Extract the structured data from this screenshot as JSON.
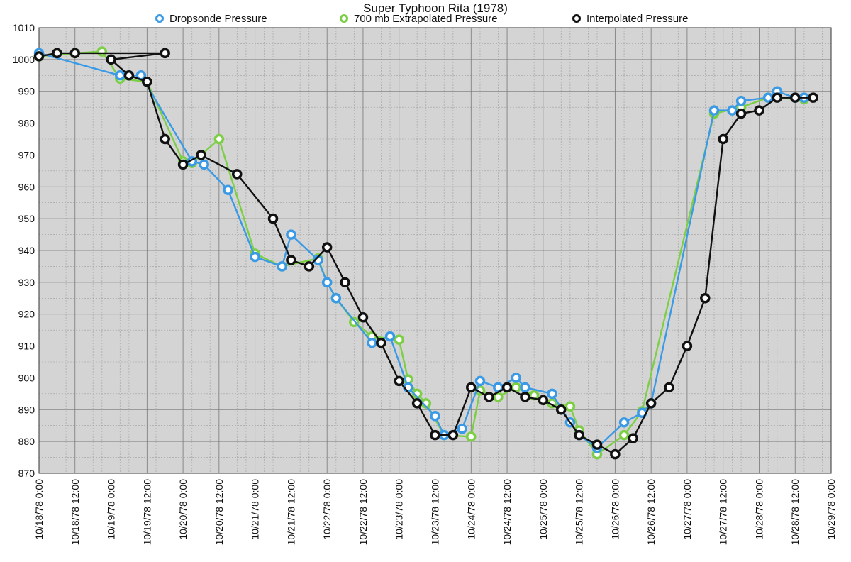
{
  "chart_data": {
    "type": "line",
    "title": "Super Typhoon Rita (1978)",
    "xlabel": "",
    "ylabel": "",
    "x_ticks": [
      "10/18/78 0:00",
      "10/18/78 12:00",
      "10/19/78 0:00",
      "10/19/78 12:00",
      "10/20/78 0:00",
      "10/20/78 12:00",
      "10/21/78 0:00",
      "10/21/78 12:00",
      "10/22/78 0:00",
      "10/22/78 12:00",
      "10/23/78 0:00",
      "10/23/78 12:00",
      "10/24/78 0:00",
      "10/24/78 12:00",
      "10/25/78 0:00",
      "10/25/78 12:00",
      "10/26/78 0:00",
      "10/26/78 12:00",
      "10/27/78 0:00",
      "10/27/78 12:00",
      "10/28/78 0:00",
      "10/28/78 12:00",
      "10/29/78 0:00"
    ],
    "y_ticks": [
      870,
      880,
      890,
      900,
      910,
      920,
      930,
      940,
      950,
      960,
      970,
      980,
      990,
      1000,
      1010
    ],
    "ylim": [
      870,
      1010
    ],
    "xlim": [
      "10/18/78 0:00",
      "10/29/78 0:00"
    ],
    "grid": true,
    "legend_position": "top",
    "series": [
      {
        "name": "Dropsonde Pressure",
        "color": "#3b9ae6",
        "points": [
          [
            "10/18/78 0:00",
            1002
          ],
          [
            "10/19/78 3:00",
            995
          ],
          [
            "10/19/78 10:00",
            995
          ],
          [
            "10/20/78 3:00",
            968
          ],
          [
            "10/20/78 7:00",
            967
          ],
          [
            "10/20/78 15:00",
            959
          ],
          [
            "10/21/78 0:00",
            938
          ],
          [
            "10/21/78 9:00",
            935
          ],
          [
            "10/21/78 12:00",
            945
          ],
          [
            "10/21/78 21:00",
            937
          ],
          [
            "10/22/78 0:00",
            930
          ],
          [
            "10/22/78 3:00",
            925
          ],
          [
            "10/22/78 15:00",
            911
          ],
          [
            "10/22/78 21:00",
            913
          ],
          [
            "10/23/78 3:00",
            897
          ],
          [
            "10/23/78 12:00",
            888
          ],
          [
            "10/23/78 15:00",
            882
          ],
          [
            "10/23/78 21:00",
            884
          ],
          [
            "10/24/78 3:00",
            899
          ],
          [
            "10/24/78 9:00",
            897
          ],
          [
            "10/24/78 15:00",
            900
          ],
          [
            "10/24/78 18:00",
            897
          ],
          [
            "10/25/78 3:00",
            895
          ],
          [
            "10/25/78 9:00",
            886
          ],
          [
            "10/25/78 12:00",
            882
          ],
          [
            "10/25/78 18:00",
            878
          ],
          [
            "10/26/78 3:00",
            886
          ],
          [
            "10/26/78 9:00",
            889
          ],
          [
            "10/26/78 12:00",
            892
          ],
          [
            "10/27/78 9:00",
            984
          ],
          [
            "10/27/78 15:00",
            984
          ],
          [
            "10/27/78 18:00",
            987
          ],
          [
            "10/28/78 3:00",
            988
          ],
          [
            "10/28/78 6:00",
            990
          ],
          [
            "10/28/78 12:00",
            988
          ],
          [
            "10/28/78 15:00",
            988
          ]
        ]
      },
      {
        "name": "700 mb Extrapolated Pressure",
        "color": "#7ccf45",
        "points": [
          [
            "10/18/78 0:00",
            1001
          ],
          [
            "10/18/78 12:00",
            1002
          ],
          [
            "10/18/78 21:00",
            1002.5
          ],
          [
            "10/19/78 3:00",
            994
          ],
          [
            "10/19/78 12:00",
            993
          ],
          [
            "10/20/78 0:00",
            968
          ],
          [
            "10/20/78 3:00",
            967.5
          ],
          [
            "10/20/78 12:00",
            975
          ],
          [
            "10/21/78 0:00",
            939
          ],
          [
            "10/21/78 9:00",
            935
          ],
          [
            "10/21/78 21:00",
            937.5
          ],
          [
            "10/22/78 0:00",
            930
          ],
          [
            "10/22/78 3:00",
            925
          ],
          [
            "10/22/78 9:00",
            917.5
          ],
          [
            "10/22/78 15:00",
            913
          ],
          [
            "10/23/78 0:00",
            912
          ],
          [
            "10/23/78 3:00",
            899.5
          ],
          [
            "10/23/78 6:00",
            895
          ],
          [
            "10/23/78 9:00",
            892
          ],
          [
            "10/23/78 15:00",
            882
          ],
          [
            "10/24/78 0:00",
            881.5
          ],
          [
            "10/24/78 3:00",
            896
          ],
          [
            "10/24/78 9:00",
            894
          ],
          [
            "10/24/78 15:00",
            897
          ],
          [
            "10/24/78 21:00",
            894.5
          ],
          [
            "10/25/78 3:00",
            892
          ],
          [
            "10/25/78 9:00",
            891
          ],
          [
            "10/25/78 12:00",
            883.5
          ],
          [
            "10/25/78 18:00",
            876
          ],
          [
            "10/26/78 3:00",
            882
          ],
          [
            "10/26/78 9:00",
            889.5
          ],
          [
            "10/27/78 9:00",
            983
          ],
          [
            "10/27/78 18:00",
            985
          ],
          [
            "10/28/78 3:00",
            988
          ],
          [
            "10/28/78 15:00",
            987.5
          ]
        ]
      },
      {
        "name": "Interpolated Pressure",
        "color": "#111111",
        "points": [
          [
            "10/18/78 0:00",
            1001
          ],
          [
            "10/18/78 6:00",
            1002
          ],
          [
            "10/18/78 12:00",
            1002
          ],
          [
            "10/19/78 18:00",
            1002
          ],
          [
            "10/19/78 0:00",
            1000
          ],
          [
            "10/19/78 6:00",
            995
          ],
          [
            "10/19/78 12:00",
            993
          ],
          [
            "10/19/78 18:00",
            975
          ],
          [
            "10/20/78 0:00",
            967
          ],
          [
            "10/20/78 6:00",
            970
          ],
          [
            "10/20/78 18:00",
            964
          ],
          [
            "10/21/78 6:00",
            950
          ],
          [
            "10/21/78 12:00",
            937
          ],
          [
            "10/21/78 18:00",
            935
          ],
          [
            "10/22/78 0:00",
            941
          ],
          [
            "10/22/78 6:00",
            930
          ],
          [
            "10/22/78 12:00",
            919
          ],
          [
            "10/22/78 18:00",
            911
          ],
          [
            "10/23/78 0:00",
            899
          ],
          [
            "10/23/78 6:00",
            892
          ],
          [
            "10/23/78 12:00",
            882
          ],
          [
            "10/23/78 18:00",
            882
          ],
          [
            "10/24/78 0:00",
            897
          ],
          [
            "10/24/78 6:00",
            894
          ],
          [
            "10/24/78 12:00",
            897
          ],
          [
            "10/24/78 18:00",
            894
          ],
          [
            "10/25/78 0:00",
            893
          ],
          [
            "10/25/78 6:00",
            890
          ],
          [
            "10/25/78 12:00",
            882
          ],
          [
            "10/25/78 18:00",
            879
          ],
          [
            "10/26/78 0:00",
            876
          ],
          [
            "10/26/78 6:00",
            881
          ],
          [
            "10/26/78 12:00",
            892
          ],
          [
            "10/26/78 18:00",
            897
          ],
          [
            "10/27/78 0:00",
            910
          ],
          [
            "10/27/78 6:00",
            925
          ],
          [
            "10/27/78 12:00",
            975
          ],
          [
            "10/27/78 18:00",
            983
          ],
          [
            "10/28/78 0:00",
            984
          ],
          [
            "10/28/78 6:00",
            988
          ],
          [
            "10/28/78 12:00",
            988
          ],
          [
            "10/28/78 18:00",
            988
          ]
        ]
      }
    ]
  }
}
